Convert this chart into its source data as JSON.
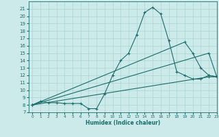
{
  "background_color": "#cceaea",
  "grid_color": "#aad4d4",
  "line_color": "#1a6b6b",
  "marker": "+",
  "xlabel": "Humidex (Indice chaleur)",
  "ylim": [
    7,
    22
  ],
  "xlim": [
    -0.5,
    23
  ],
  "yticks": [
    7,
    8,
    9,
    10,
    11,
    12,
    13,
    14,
    15,
    16,
    17,
    18,
    19,
    20,
    21
  ],
  "xticks": [
    0,
    1,
    2,
    3,
    4,
    5,
    6,
    7,
    8,
    9,
    10,
    11,
    12,
    13,
    14,
    15,
    16,
    17,
    18,
    19,
    20,
    21,
    22,
    23
  ],
  "series": [
    {
      "x": [
        0,
        1,
        2,
        3,
        4,
        5,
        6,
        7,
        8,
        9,
        10,
        11,
        12,
        13,
        14,
        15,
        16,
        17,
        18,
        19,
        20,
        21,
        22,
        23
      ],
      "y": [
        8,
        8.5,
        8.3,
        8.3,
        8.2,
        8.2,
        8.2,
        7.5,
        7.5,
        9.5,
        12.0,
        14.0,
        15.0,
        17.5,
        20.5,
        21.2,
        20.3,
        16.7,
        12.5,
        12.0,
        11.5,
        11.5,
        12.0,
        11.8
      ]
    },
    {
      "x": [
        0,
        22,
        23
      ],
      "y": [
        8,
        15.0,
        11.8
      ]
    },
    {
      "x": [
        0,
        19,
        20,
        21,
        22,
        23
      ],
      "y": [
        8,
        16.5,
        15.0,
        13.0,
        12.0,
        11.8
      ]
    },
    {
      "x": [
        0,
        22,
        23
      ],
      "y": [
        8,
        11.8,
        11.8
      ]
    }
  ]
}
